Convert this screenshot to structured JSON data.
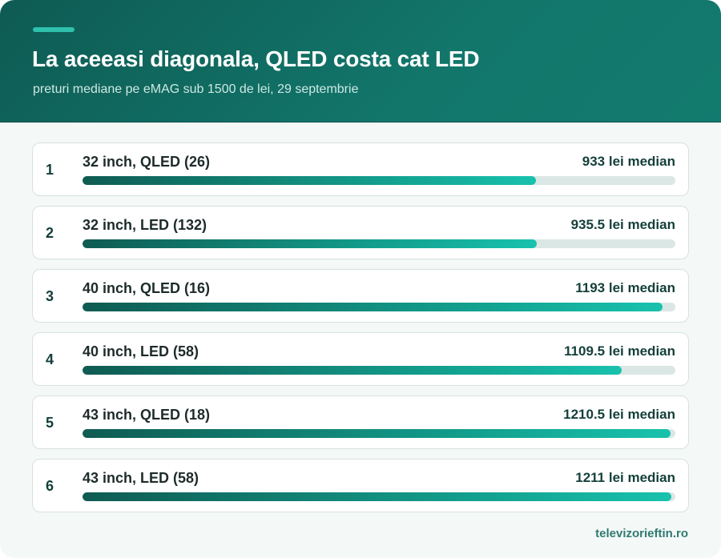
{
  "header": {
    "title": "La aceeasi diagonala, QLED costa cat LED",
    "subtitle": "preturi mediane pe eMAG sub 1500 de lei, 29 septembrie"
  },
  "footer": {
    "source": "televizorieftin.ro"
  },
  "colors": {
    "header_bg": "#12766b",
    "accent": "#2fc1ae",
    "bar_start": "#0f5b52",
    "bar_end": "#18c2ad",
    "track": "#dbe7e4"
  },
  "chart_data": {
    "type": "bar",
    "orientation": "horizontal",
    "title": "La aceeasi diagonala, QLED costa cat LED",
    "subtitle": "preturi mediane pe eMAG sub 1500 de lei, 29 septembrie",
    "xlim": [
      0,
      1220
    ],
    "rows": [
      {
        "rank": "1",
        "label": "32 inch, QLED (26)",
        "value": 933,
        "value_label": "933 lei median"
      },
      {
        "rank": "2",
        "label": "32 inch, LED (132)",
        "value": 935.5,
        "value_label": "935.5 lei median"
      },
      {
        "rank": "3",
        "label": "40 inch, QLED (16)",
        "value": 1193,
        "value_label": "1193 lei median"
      },
      {
        "rank": "4",
        "label": "40 inch, LED (58)",
        "value": 1109.5,
        "value_label": "1109.5 lei median"
      },
      {
        "rank": "5",
        "label": "43 inch, QLED (18)",
        "value": 1210.5,
        "value_label": "1210.5 lei median"
      },
      {
        "rank": "6",
        "label": "43 inch, LED (58)",
        "value": 1211,
        "value_label": "1211 lei median"
      }
    ]
  }
}
